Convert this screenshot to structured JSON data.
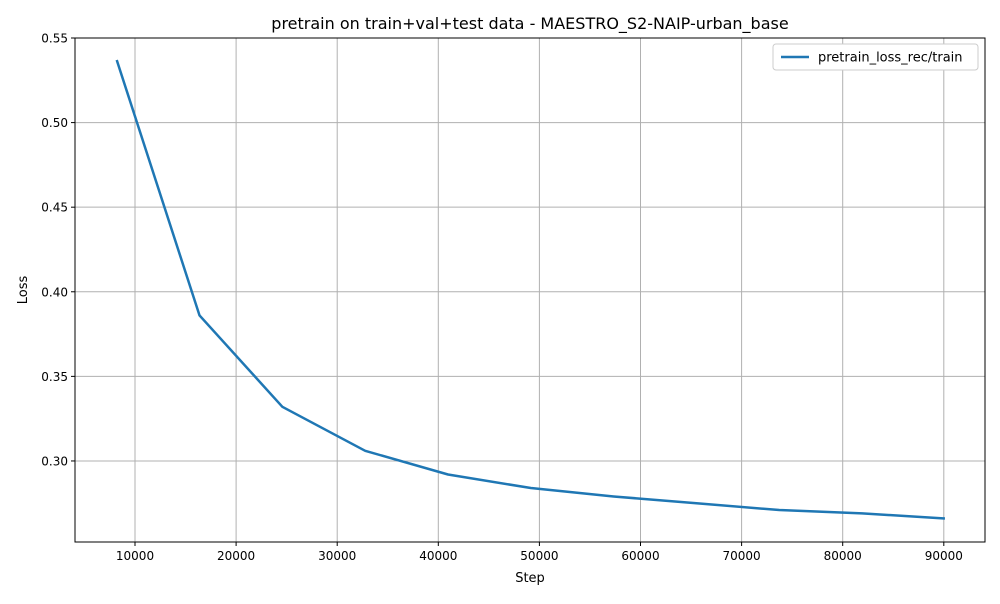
{
  "chart_data": {
    "type": "line",
    "title": "pretrain on train+val+test data - MAESTRO_S2-NAIP-urban_base",
    "xlabel": "Step",
    "ylabel": "Loss",
    "xlim": [
      4065,
      94075
    ],
    "ylim": [
      0.2521,
      0.55
    ],
    "xticks": [
      10000,
      20000,
      30000,
      40000,
      50000,
      60000,
      70000,
      80000,
      90000
    ],
    "xtick_labels": [
      "10000",
      "20000",
      "30000",
      "40000",
      "50000",
      "60000",
      "70000",
      "80000",
      "90000"
    ],
    "yticks": [
      0.3,
      0.35,
      0.4,
      0.45,
      0.5,
      0.55
    ],
    "ytick_labels": [
      "0.30",
      "0.35",
      "0.40",
      "0.45",
      "0.50",
      "0.55"
    ],
    "grid": true,
    "legend_position": "top-right",
    "series": [
      {
        "name": "pretrain_loss_rec/train",
        "color": "#1f77b4",
        "x": [
          8192,
          16384,
          24576,
          32768,
          40960,
          49152,
          57344,
          65536,
          73728,
          81920,
          90112
        ],
        "y": [
          0.537,
          0.386,
          0.332,
          0.306,
          0.292,
          0.284,
          0.279,
          0.275,
          0.271,
          0.269,
          0.266
        ]
      }
    ]
  }
}
